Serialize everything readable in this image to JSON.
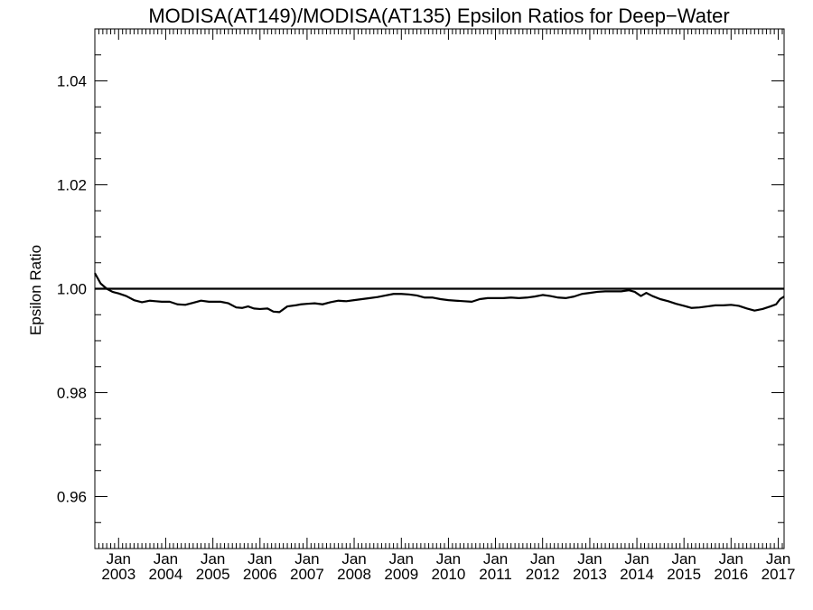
{
  "chart_data": {
    "type": "line",
    "title": "MODISA(AT149)/MODISA(AT135)  Epsilon Ratios for Deep−Water",
    "xlabel": "",
    "ylabel": "Epsilon Ratio",
    "xlim": [
      "2002-07-01",
      "2017-02-15"
    ],
    "ylim": [
      0.95,
      1.05
    ],
    "grid": false,
    "legend": "none",
    "y_ticks": [
      {
        "value": 0.96,
        "label": "0.96"
      },
      {
        "value": 0.98,
        "label": "0.98"
      },
      {
        "value": 1.0,
        "label": "1.00"
      },
      {
        "value": 1.02,
        "label": "1.02"
      },
      {
        "value": 1.04,
        "label": "1.04"
      }
    ],
    "x_ticks": [
      {
        "value": "2003-01-01",
        "line1": "Jan",
        "line2": "2003"
      },
      {
        "value": "2004-01-01",
        "line1": "Jan",
        "line2": "2004"
      },
      {
        "value": "2005-01-01",
        "line1": "Jan",
        "line2": "2005"
      },
      {
        "value": "2006-01-01",
        "line1": "Jan",
        "line2": "2006"
      },
      {
        "value": "2007-01-01",
        "line1": "Jan",
        "line2": "2007"
      },
      {
        "value": "2008-01-01",
        "line1": "Jan",
        "line2": "2008"
      },
      {
        "value": "2009-01-01",
        "line1": "Jan",
        "line2": "2009"
      },
      {
        "value": "2010-01-01",
        "line1": "Jan",
        "line2": "2010"
      },
      {
        "value": "2011-01-01",
        "line1": "Jan",
        "line2": "2011"
      },
      {
        "value": "2012-01-01",
        "line1": "Jan",
        "line2": "2012"
      },
      {
        "value": "2013-01-01",
        "line1": "Jan",
        "line2": "2013"
      },
      {
        "value": "2014-01-01",
        "line1": "Jan",
        "line2": "2014"
      },
      {
        "value": "2015-01-01",
        "line1": "Jan",
        "line2": "2015"
      },
      {
        "value": "2016-01-01",
        "line1": "Jan",
        "line2": "2016"
      },
      {
        "value": "2017-01-01",
        "line1": "Jan",
        "line2": "2017"
      }
    ],
    "reference_line": {
      "y": 1.0
    },
    "series": [
      {
        "x": [
          "2002-07-01",
          "2002-08-15",
          "2002-10-01",
          "2002-11-15",
          "2003-01-01",
          "2003-03-01",
          "2003-05-01",
          "2003-07-01",
          "2003-09-01",
          "2003-10-15",
          "2003-12-01",
          "2004-02-01",
          "2004-04-01",
          "2004-06-01",
          "2004-08-01",
          "2004-10-01",
          "2004-12-01",
          "2005-01-15",
          "2005-03-01",
          "2005-05-01",
          "2005-07-01",
          "2005-08-15",
          "2005-10-01",
          "2005-11-15",
          "2006-01-01",
          "2006-03-01",
          "2006-04-15",
          "2006-06-01",
          "2006-08-01",
          "2006-10-01",
          "2006-11-15",
          "2007-01-01",
          "2007-03-01",
          "2007-05-01",
          "2007-07-01",
          "2007-09-01",
          "2007-11-01",
          "2008-01-01",
          "2008-03-01",
          "2008-05-01",
          "2008-07-01",
          "2008-09-01",
          "2008-11-01",
          "2009-01-01",
          "2009-03-01",
          "2009-05-01",
          "2009-07-01",
          "2009-09-01",
          "2009-11-01",
          "2010-01-01",
          "2010-03-01",
          "2010-05-01",
          "2010-07-01",
          "2010-09-01",
          "2010-11-01",
          "2011-01-01",
          "2011-03-01",
          "2011-05-01",
          "2011-07-01",
          "2011-09-01",
          "2011-11-01",
          "2012-01-01",
          "2012-03-01",
          "2012-05-01",
          "2012-07-01",
          "2012-09-01",
          "2012-11-01",
          "2013-01-01",
          "2013-03-01",
          "2013-05-01",
          "2013-07-01",
          "2013-09-01",
          "2013-11-01",
          "2013-12-15",
          "2014-02-01",
          "2014-03-15",
          "2014-05-01",
          "2014-07-01",
          "2014-09-01",
          "2014-11-01",
          "2015-01-01",
          "2015-03-01",
          "2015-05-01",
          "2015-07-01",
          "2015-09-01",
          "2015-11-01",
          "2016-01-01",
          "2016-03-01",
          "2016-05-01",
          "2016-07-01",
          "2016-09-01",
          "2016-11-01",
          "2016-12-15",
          "2017-01-15",
          "2017-02-15"
        ],
        "y": [
          1.003,
          1.001,
          1.0,
          0.9994,
          0.9991,
          0.9986,
          0.9978,
          0.9974,
          0.9977,
          0.9976,
          0.9975,
          0.9975,
          0.997,
          0.9969,
          0.9973,
          0.9977,
          0.9975,
          0.9975,
          0.9975,
          0.9972,
          0.9964,
          0.9963,
          0.9966,
          0.9962,
          0.9961,
          0.9962,
          0.9956,
          0.9955,
          0.9966,
          0.9968,
          0.997,
          0.9971,
          0.9972,
          0.997,
          0.9974,
          0.9977,
          0.9976,
          0.9978,
          0.998,
          0.9982,
          0.9984,
          0.9987,
          0.999,
          0.999,
          0.9989,
          0.9987,
          0.9983,
          0.9983,
          0.998,
          0.9978,
          0.9977,
          0.9976,
          0.9975,
          0.998,
          0.9982,
          0.9982,
          0.9982,
          0.9983,
          0.9982,
          0.9983,
          0.9985,
          0.9988,
          0.9986,
          0.9983,
          0.9982,
          0.9985,
          0.999,
          0.9992,
          0.9994,
          0.9995,
          0.9995,
          0.9995,
          0.9997,
          0.9994,
          0.9986,
          0.9992,
          0.9986,
          0.998,
          0.9976,
          0.9971,
          0.9967,
          0.9963,
          0.9964,
          0.9966,
          0.9968,
          0.9968,
          0.9969,
          0.9967,
          0.9962,
          0.9958,
          0.9961,
          0.9966,
          0.997,
          0.998,
          0.9985
        ]
      }
    ]
  }
}
